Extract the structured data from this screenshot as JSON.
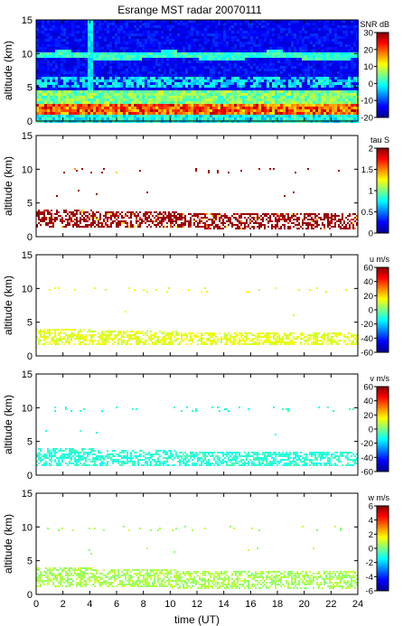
{
  "title": "Esrange MST radar 20070111",
  "xlabel": "time (UT)",
  "x_ticks": [
    "0",
    "2",
    "4",
    "6",
    "8",
    "10",
    "12",
    "14",
    "16",
    "18",
    "20",
    "22",
    "24"
  ],
  "chart_data": [
    {
      "type": "heatmap",
      "title": "Esrange MST radar 20070111",
      "ylabel": "altitude (km)",
      "y_ticks": [
        "0",
        "5",
        "10",
        "15"
      ],
      "xlim": [
        0,
        24
      ],
      "ylim": [
        0,
        15
      ],
      "colorbar": {
        "label": "SNR dB",
        "ticks": [
          "30",
          "20",
          "10",
          "0",
          "-10",
          "-20"
        ],
        "range": [
          -20,
          30
        ]
      },
      "description_layers": [
        {
          "name": "background noise",
          "alt": [
            0,
            15
          ],
          "value_db": -15
        },
        {
          "name": "layer",
          "alt": [
            9.6,
            10.2
          ],
          "value_db": 0
        },
        {
          "name": "layer",
          "alt": [
            5.5,
            6.5
          ],
          "value_db": -2
        },
        {
          "name": "layer",
          "alt": [
            3,
            4
          ],
          "value_db": 5
        },
        {
          "name": "layer",
          "alt": [
            1.3,
            2.5
          ],
          "value_db": 25
        }
      ],
      "interference_column_time": 4.0
    },
    {
      "type": "heatmap",
      "ylabel": "altitude (km)",
      "y_ticks": [
        "0",
        "5",
        "10",
        "15"
      ],
      "xlim": [
        0,
        24
      ],
      "ylim": [
        0,
        15
      ],
      "colorbar": {
        "label": "tau S",
        "ticks": [
          "2",
          "1.5",
          "1",
          "0.5",
          "0"
        ],
        "range": [
          0,
          2
        ]
      },
      "dominant_value": 2.0,
      "echo_band_alt": [
        1.5,
        4.2
      ]
    },
    {
      "type": "heatmap",
      "ylabel": "altitude (km)",
      "y_ticks": [
        "0",
        "5",
        "10",
        "15"
      ],
      "xlim": [
        0,
        24
      ],
      "ylim": [
        0,
        15
      ],
      "colorbar": {
        "label": "u m/s",
        "ticks": [
          "60",
          "40",
          "20",
          "0",
          "-20",
          "-40",
          "-60"
        ],
        "range": [
          -60,
          60
        ]
      },
      "dominant_value": 12,
      "echo_band_alt": [
        1.8,
        4.2
      ]
    },
    {
      "type": "heatmap",
      "ylabel": "altitude (km)",
      "y_ticks": [
        "0",
        "5",
        "10",
        "15"
      ],
      "xlim": [
        0,
        24
      ],
      "ylim": [
        0,
        15
      ],
      "colorbar": {
        "label": "v m/s",
        "ticks": [
          "60",
          "40",
          "20",
          "0",
          "-20",
          "-40",
          "-60"
        ],
        "range": [
          -60,
          60
        ]
      },
      "dominant_value": -10,
      "echo_band_alt": [
        1.6,
        4.2
      ]
    },
    {
      "type": "heatmap",
      "ylabel": "altitude (km)",
      "y_ticks": [
        "0",
        "5",
        "10",
        "15"
      ],
      "xlim": [
        0,
        24
      ],
      "ylim": [
        0,
        15
      ],
      "colorbar": {
        "label": "w m/s",
        "ticks": [
          "6",
          "4",
          "2",
          "0",
          "-2",
          "-4",
          "-6"
        ],
        "range": [
          -6,
          6
        ]
      },
      "dominant_value": 0.5,
      "echo_band_alt": [
        1.2,
        4.2
      ]
    }
  ],
  "colors": {
    "jet": [
      "#00008f",
      "#0000ff",
      "#007fff",
      "#00ffff",
      "#7fff7f",
      "#ffff00",
      "#ff7f00",
      "#ff0000",
      "#7f0000"
    ]
  }
}
